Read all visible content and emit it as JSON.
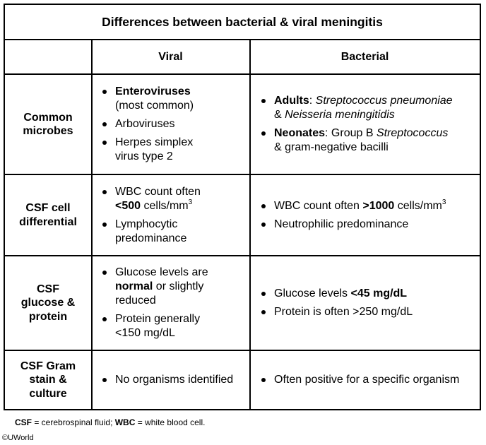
{
  "title": "Differences between bacterial & viral meningitis",
  "columns": {
    "viral": "Viral",
    "bacterial": "Bacterial"
  },
  "rows": [
    {
      "label_lines": [
        "Common",
        "microbes"
      ],
      "viral": [
        {
          "b": "Enteroviruses",
          "t": "(most common)"
        },
        {
          "t": "Arboviruses"
        },
        {
          "t": "Herpes simplex virus type 2"
        }
      ],
      "bacterial": [
        {
          "b": "Adults",
          "colon": ": ",
          "i1": "Streptococcus pneumoniae",
          "amp": "& ",
          "i2": "Neisseria meningitidis"
        },
        {
          "b": "Neonates",
          "colon": ": ",
          "t": "Group B ",
          "i1": "Streptococcus",
          "t2": "& gram-negative bacilli"
        }
      ]
    },
    {
      "label_lines": [
        "CSF cell",
        "differential"
      ],
      "viral": [
        {
          "t": "WBC count often",
          "b": "<500",
          "t2": " cells/mm",
          "sup": "3"
        },
        {
          "t": "Lymphocytic predominance"
        }
      ],
      "bacterial": [
        {
          "t": "WBC count often ",
          "b": ">1000",
          "t2": " cells/mm",
          "sup": "3"
        },
        {
          "t": "Neutrophilic predominance"
        }
      ]
    },
    {
      "label_lines": [
        "CSF",
        "glucose &",
        "protein"
      ],
      "viral": [
        {
          "t": "Glucose levels are",
          "b": "normal",
          "t2": " or slightly reduced"
        },
        {
          "t": "Protein generally <150 mg/dL"
        }
      ],
      "bacterial": [
        {
          "t": "Glucose levels ",
          "b": "<45 mg/dL"
        },
        {
          "t": "Protein is often >250 mg/dL"
        }
      ]
    },
    {
      "label_lines": [
        "CSF Gram",
        "stain &",
        "culture"
      ],
      "viral": [
        {
          "t": "No organisms identified"
        }
      ],
      "bacterial": [
        {
          "t": "Often positive for a specific organism"
        }
      ]
    }
  ],
  "footnote": {
    "csf": "CSF",
    "csf_def": " = cerebrospinal fluid; ",
    "wbc": "WBC",
    "wbc_def": " = white blood cell."
  },
  "copyright": "©UWorld"
}
